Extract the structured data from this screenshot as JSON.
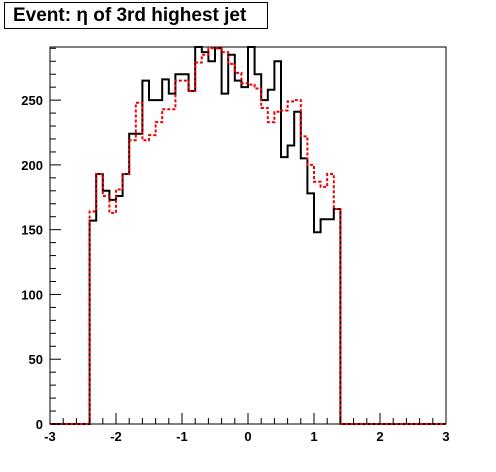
{
  "chart_data": {
    "type": "histogram",
    "title": "Event: η of 3rd highest jet",
    "xlim": [
      -3,
      3
    ],
    "ylim": [
      0,
      291
    ],
    "bin_width": 0.1,
    "x_start": -3.0,
    "x_ticks": [
      -3,
      -2,
      -1,
      0,
      1,
      2,
      3
    ],
    "y_ticks": [
      0,
      50,
      100,
      150,
      200,
      250
    ],
    "grid": false,
    "legend": "none",
    "series": [
      {
        "color": "#000000",
        "style": "solid",
        "values": [
          0,
          0,
          0,
          0,
          0,
          0,
          157,
          193,
          180,
          173,
          176,
          193,
          224,
          224,
          265,
          250,
          250,
          266,
          255,
          270,
          270,
          257,
          291,
          287,
          280,
          290,
          255,
          285,
          265,
          260,
          293,
          270,
          250,
          258,
          280,
          206,
          215,
          241,
          205,
          178,
          148,
          158,
          158,
          166,
          0,
          0,
          0,
          0,
          0,
          0,
          0,
          0,
          0,
          0,
          0,
          0,
          0,
          0,
          0,
          0
        ]
      },
      {
        "color": "#ee0000",
        "style": "dashed",
        "values": [
          0,
          0,
          0,
          0,
          0,
          0,
          164,
          193,
          176,
          163,
          181,
          193,
          219,
          248,
          219,
          223,
          233,
          243,
          243,
          265,
          265,
          257,
          279,
          285,
          290,
          290,
          287,
          278,
          271,
          263,
          262,
          259,
          244,
          233,
          241,
          242,
          249,
          250,
          222,
          200,
          187,
          183,
          193,
          166,
          0,
          0,
          0,
          0,
          0,
          0,
          0,
          0,
          0,
          0,
          0,
          0,
          0,
          0,
          0,
          0
        ]
      }
    ]
  }
}
